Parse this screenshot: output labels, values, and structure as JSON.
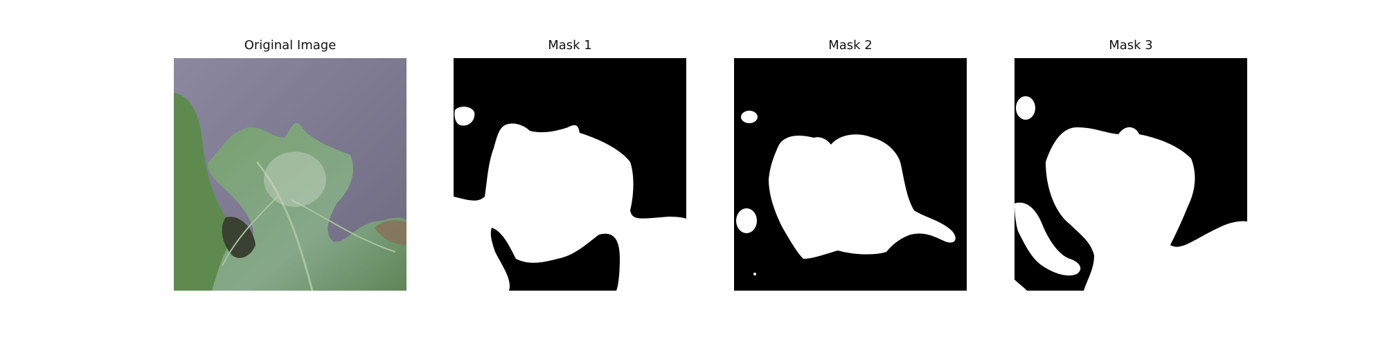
{
  "figure": {
    "panels": [
      {
        "title": "Original Image",
        "image": "leaf-photo"
      },
      {
        "title": "Mask 1",
        "image": "binary-mask"
      },
      {
        "title": "Mask 2",
        "image": "binary-mask"
      },
      {
        "title": "Mask 3",
        "image": "binary-mask"
      }
    ]
  },
  "colors": {
    "background": "#7e7b91",
    "leaf": "#6f9368",
    "mask_fg": "#ffffff",
    "mask_bg": "#000000"
  }
}
